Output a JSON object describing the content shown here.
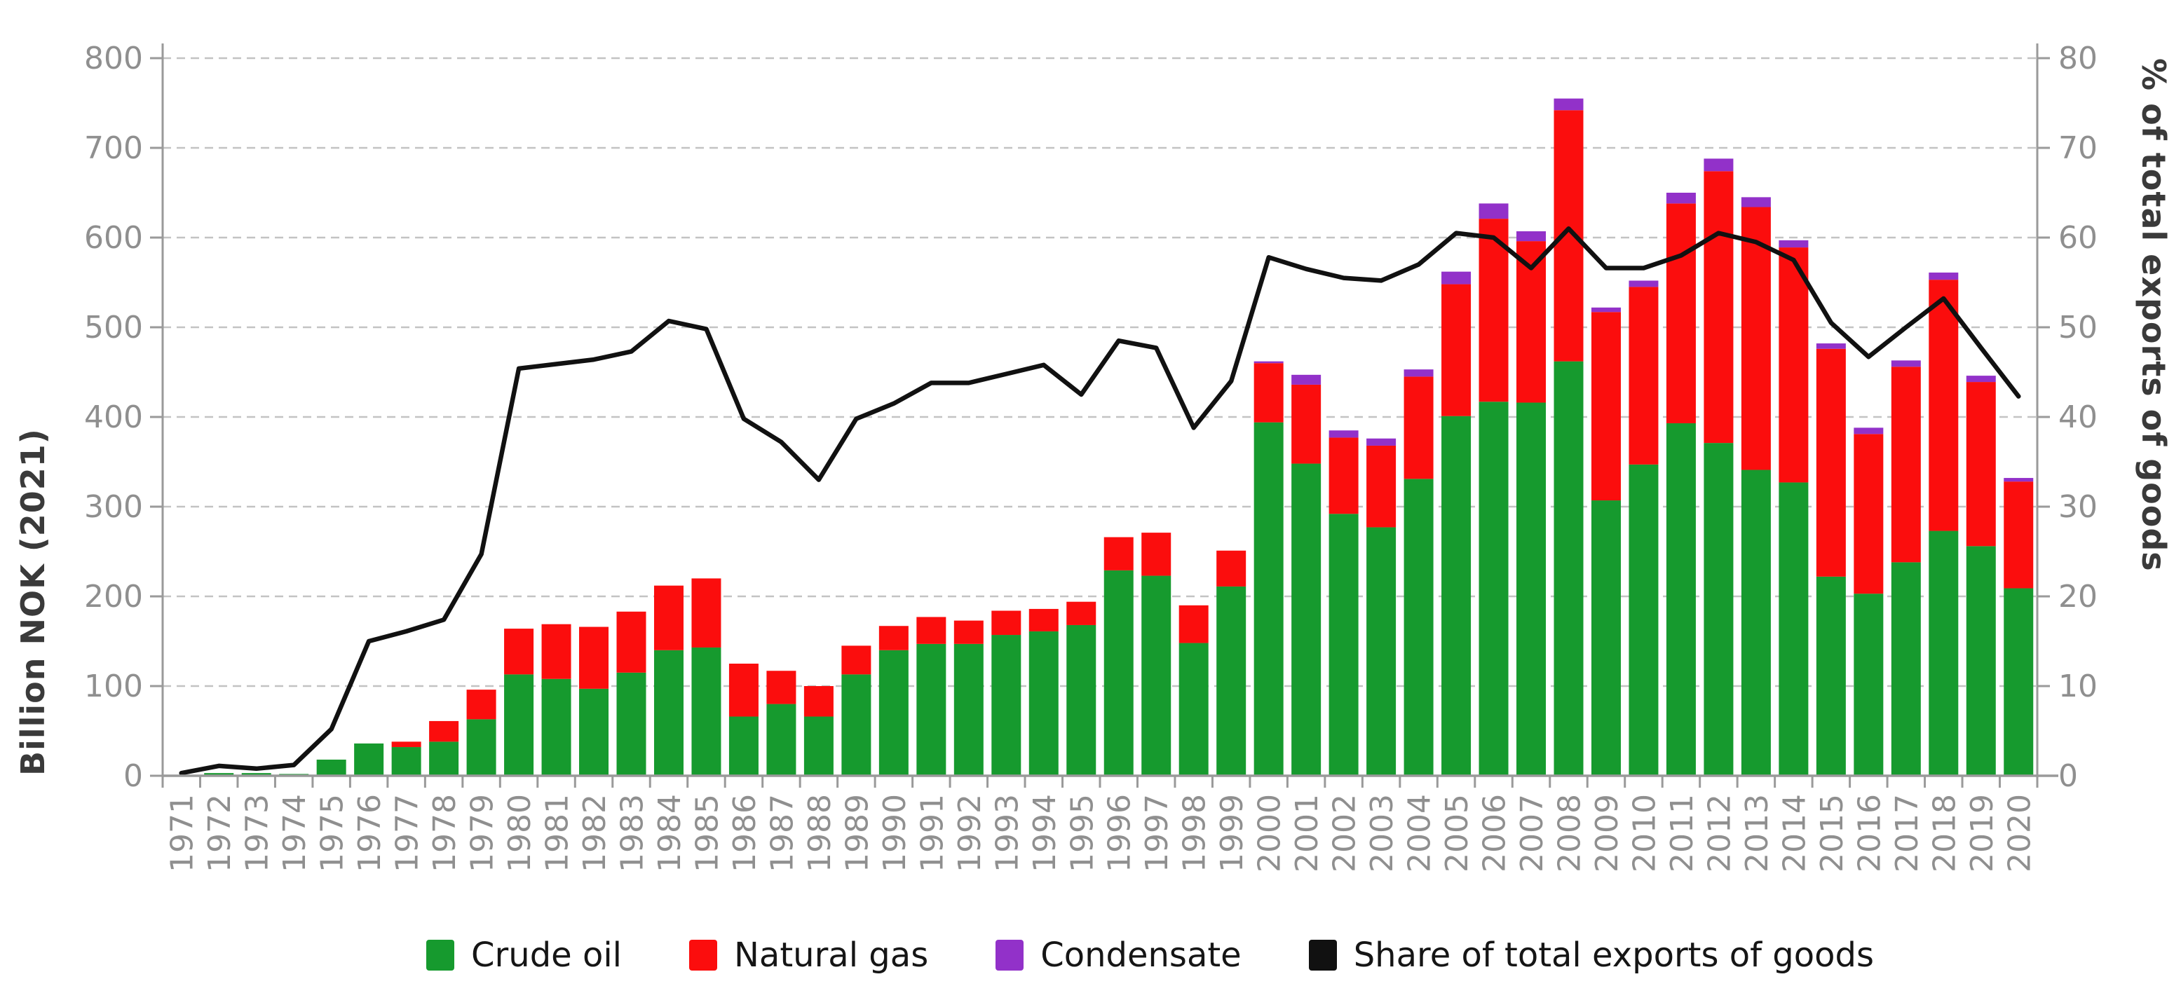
{
  "chart_data": {
    "type": "bar",
    "stacked": true,
    "categories": [
      1971,
      1972,
      1973,
      1974,
      1975,
      1976,
      1977,
      1978,
      1979,
      1980,
      1981,
      1982,
      1983,
      1984,
      1985,
      1986,
      1987,
      1988,
      1989,
      1990,
      1991,
      1992,
      1993,
      1994,
      1995,
      1996,
      1997,
      1998,
      1999,
      2000,
      2001,
      2002,
      2003,
      2004,
      2005,
      2006,
      2007,
      2008,
      2009,
      2010,
      2011,
      2012,
      2013,
      2014,
      2015,
      2016,
      2017,
      2018,
      2019,
      2020
    ],
    "series": [
      {
        "name": "Crude oil",
        "type": "bar",
        "color": "#169a2e",
        "values": [
          1,
          3,
          3,
          2,
          18,
          36,
          32,
          38,
          63,
          113,
          108,
          97,
          115,
          140,
          143,
          66,
          80,
          66,
          113,
          140,
          147,
          147,
          157,
          161,
          168,
          229,
          223,
          148,
          211,
          394,
          348,
          292,
          277,
          331,
          401,
          417,
          416,
          462,
          307,
          347,
          393,
          371,
          341,
          327,
          222,
          203,
          238,
          273,
          256,
          209
        ]
      },
      {
        "name": "Natural gas",
        "type": "bar",
        "color": "#fb0d0d",
        "values": [
          0,
          0,
          0,
          0,
          0,
          0,
          6,
          23,
          33,
          51,
          61,
          69,
          68,
          72,
          77,
          59,
          37,
          34,
          32,
          27,
          30,
          26,
          27,
          25,
          26,
          37,
          48,
          42,
          40,
          66,
          88,
          85,
          91,
          114,
          147,
          204,
          180,
          280,
          210,
          198,
          245,
          303,
          293,
          262,
          254,
          178,
          218,
          280,
          183,
          119
        ]
      },
      {
        "name": "Condensate",
        "type": "bar",
        "color": "#9231c9",
        "values": [
          0,
          0,
          0,
          0,
          0,
          0,
          0,
          0,
          0,
          0,
          0,
          0,
          0,
          0,
          0,
          0,
          0,
          0,
          0,
          0,
          0,
          0,
          0,
          0,
          0,
          0,
          0,
          0,
          0,
          2,
          11,
          8,
          8,
          8,
          14,
          17,
          11,
          13,
          5,
          7,
          12,
          14,
          11,
          8,
          6,
          7,
          7,
          8,
          7,
          4
        ]
      },
      {
        "name": "Share of total exports of goods",
        "type": "line",
        "axis": "right",
        "color": "#111111",
        "values": [
          0.3,
          1.1,
          0.8,
          1.2,
          5.2,
          15.0,
          16.1,
          17.4,
          24.7,
          45.4,
          45.9,
          46.4,
          47.3,
          50.7,
          49.8,
          39.8,
          37.2,
          33.0,
          39.8,
          41.5,
          43.8,
          43.8,
          44.8,
          45.8,
          42.5,
          48.5,
          47.7,
          38.8,
          44.0,
          57.8,
          56.5,
          55.5,
          55.2,
          57.0,
          60.5,
          60.0,
          56.6,
          61.0,
          56.6,
          56.6,
          58.0,
          60.5,
          59.5,
          57.5,
          50.5,
          46.7,
          50.0,
          53.2,
          47.7,
          42.3
        ]
      }
    ],
    "ylabel": "Billion NOK (2021)",
    "y2label": "% of total exports of goods",
    "ylim": [
      0,
      800
    ],
    "y2lim": [
      0,
      80
    ],
    "yticks": [
      0,
      100,
      200,
      300,
      400,
      500,
      600,
      700,
      800
    ],
    "y2ticks": [
      0,
      10,
      20,
      30,
      40,
      50,
      60,
      70,
      80
    ],
    "grid": "dashed-horizontal",
    "tick_label_color": "#8f8f8f",
    "spine_color": "#9a9a9a",
    "gridline_color": "#c3c3c3"
  }
}
